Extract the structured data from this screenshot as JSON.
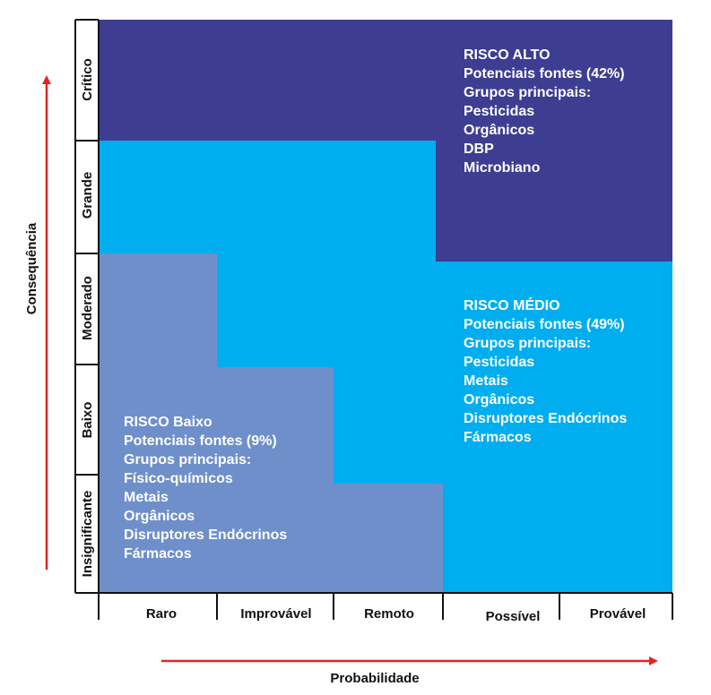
{
  "axes": {
    "y_title": "Consequência",
    "x_title": "Probabilidade",
    "y_levels": [
      "Insignificante",
      "Baixo",
      "Moderado",
      "Grande",
      "Crítico"
    ],
    "x_levels": [
      "Raro",
      "Improvável",
      "Remoto",
      "Possível",
      "Provável"
    ]
  },
  "zones": {
    "high": {
      "heading": "RISCO ALTO",
      "sources": "Potenciais fontes (42%)",
      "groups_label": "Grupos principais:",
      "groups": [
        "Pesticidas",
        "Orgânicos",
        "DBP",
        "Microbiano"
      ]
    },
    "medium": {
      "heading": "RISCO MÉDIO",
      "sources": "Potenciais fontes (49%)",
      "groups_label": "Grupos principais:",
      "groups": [
        "Pesticidas",
        "Metais",
        "Orgânicos",
        "Disruptores Endócrinos",
        "Fármacos"
      ]
    },
    "low": {
      "heading": "RISCO Baixo",
      "sources": "Potenciais fontes (9%)",
      "groups_label": "Grupos principais:",
      "groups": [
        "Físico-químicos",
        "Metais",
        "Orgânicos",
        "Disruptores Endócrinos",
        "Fármacos"
      ]
    }
  },
  "colors": {
    "high": "#3d3d91",
    "medium": "#00aeef",
    "low": "#6f8fcb",
    "arrow": "#e32424"
  }
}
